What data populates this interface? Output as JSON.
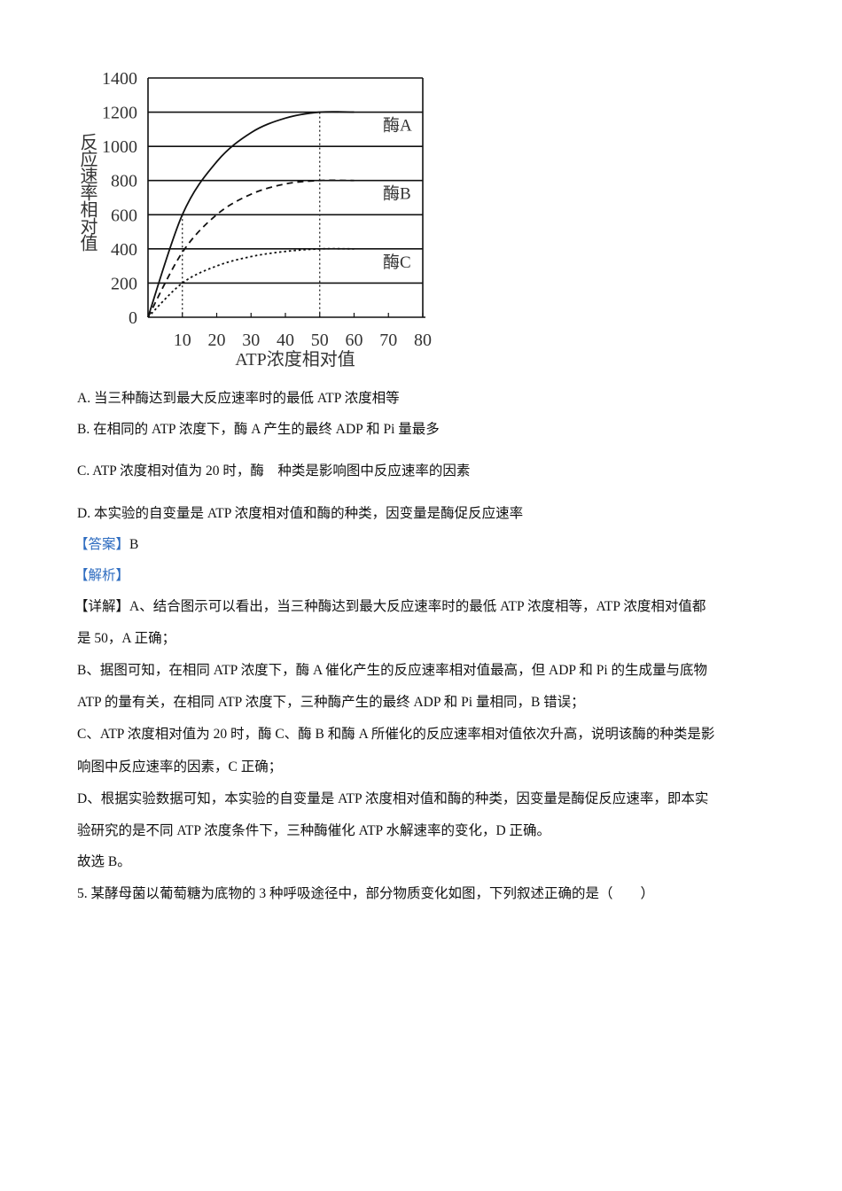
{
  "chart_data": {
    "type": "line",
    "xlabel": "ATP浓度相对值",
    "ylabel": "反应速率相对值",
    "xlim": [
      0,
      80
    ],
    "ylim": [
      0,
      1400
    ],
    "xticks": [
      10,
      20,
      30,
      40,
      50,
      60,
      70,
      80
    ],
    "yticks": [
      0,
      200,
      400,
      600,
      800,
      1000,
      1200,
      1400
    ],
    "grid": "horizontal",
    "x": [
      0,
      10,
      20,
      30,
      40,
      50,
      60
    ],
    "series": [
      {
        "name": "酶A",
        "style": "solid",
        "values": [
          0,
          600,
          910,
          1080,
          1165,
          1200,
          1200
        ]
      },
      {
        "name": "酶B",
        "style": "dashed",
        "values": [
          0,
          380,
          600,
          720,
          780,
          800,
          800
        ]
      },
      {
        "name": "酶C",
        "style": "dotted",
        "values": [
          0,
          200,
          300,
          355,
          385,
          400,
          400
        ]
      }
    ],
    "reference_lines": [
      {
        "x": 10,
        "to_y": 600
      },
      {
        "x": 50,
        "to_y": 1200
      }
    ]
  },
  "options": {
    "a": "A. 当三种酶达到最大反应速率时的最低 ATP 浓度相等",
    "b": "B. 在相同的 ATP 浓度下，酶 A 产生的最终 ADP 和 Pi 量最多",
    "c": "C. ATP 浓度相对值为 20 时，酶　种类是影响图中反应速率的因素",
    "d": "D. 本实验的自变量是 ATP 浓度相对值和酶的种类，因变量是酶促反应速率"
  },
  "answer": {
    "label": "【答案】",
    "value": "B"
  },
  "analysis": {
    "label": "【解析】"
  },
  "detail": {
    "label": "【详解】",
    "lines": [
      "A、结合图示可以看出，当三种酶达到最大反应速率时的最低 ATP 浓度相等，ATP 浓度相对值都",
      "是 50，A 正确；",
      "B、据图可知，在相同 ATP 浓度下，酶 A 催化产生的反应速率相对值最高，但 ADP 和 Pi 的生成量与底物",
      "ATP 的量有关，在相同 ATP 浓度下，三种酶产生的最终 ADP 和 Pi 量相同，B 错误；",
      "C、ATP 浓度相对值为 20 时，酶 C、酶 B 和酶 A 所催化的反应速率相对值依次升高，说明该酶的种类是影",
      "响图中反应速率的因素，C 正确；",
      "D、根据实验数据可知，本实验的自变量是 ATP 浓度相对值和酶的种类，因变量是酶促反应速率，即本实",
      "验研究的是不同 ATP 浓度条件下，三种酶催化 ATP 水解速率的变化，D 正确。",
      "故选 B。"
    ]
  },
  "next_question": "5. 某酵母菌以葡萄糖为底物的 3 种呼吸途径中，部分物质变化如图，下列叙述正确的是（　　）"
}
